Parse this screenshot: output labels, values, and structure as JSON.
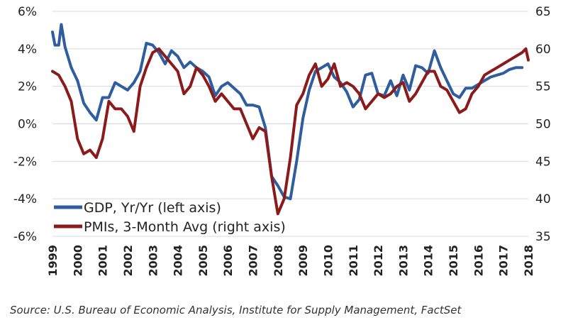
{
  "chart_data": {
    "type": "line",
    "title": "",
    "xlim": [
      1999.0,
      2018.0
    ],
    "x_tick_labels": [
      "1999",
      "2000",
      "2001",
      "2002",
      "2003",
      "2004",
      "2005",
      "2006",
      "2007",
      "2008",
      "2009",
      "2010",
      "2011",
      "2012",
      "2013",
      "2014",
      "2015",
      "2016",
      "2017",
      "2018"
    ],
    "left_axis": {
      "ylim": [
        -6,
        6
      ],
      "tick_labels": [
        "-6%",
        "-4%",
        "-2%",
        "0%",
        "2%",
        "4%",
        "6%"
      ]
    },
    "right_axis": {
      "ylim": [
        35,
        65
      ],
      "tick_labels": [
        "35",
        "40",
        "45",
        "50",
        "55",
        "60",
        "65"
      ]
    },
    "grid": true,
    "legend_position": "lower-left",
    "series": [
      {
        "name": "GDP, Yr/Yr (left axis)",
        "axis": "left",
        "color": "#2f5d9e",
        "x": [
          1999.0,
          1999.1,
          1999.25,
          1999.35,
          1999.5,
          1999.75,
          2000.0,
          2000.25,
          2000.5,
          2000.75,
          2001.0,
          2001.25,
          2001.5,
          2001.75,
          2002.0,
          2002.25,
          2002.5,
          2002.75,
          2003.0,
          2003.25,
          2003.5,
          2003.75,
          2004.0,
          2004.25,
          2004.5,
          2004.75,
          2005.0,
          2005.25,
          2005.5,
          2005.75,
          2006.0,
          2006.25,
          2006.5,
          2006.75,
          2007.0,
          2007.25,
          2007.5,
          2007.75,
          2008.0,
          2008.25,
          2008.5,
          2008.75,
          2009.0,
          2009.25,
          2009.5,
          2009.75,
          2010.0,
          2010.25,
          2010.5,
          2010.75,
          2011.0,
          2011.25,
          2011.5,
          2011.75,
          2012.0,
          2012.25,
          2012.5,
          2012.75,
          2013.0,
          2013.25,
          2013.5,
          2013.75,
          2014.0,
          2014.25,
          2014.5,
          2014.75,
          2015.0,
          2015.25,
          2015.5,
          2015.75,
          2016.0,
          2016.25,
          2016.5,
          2016.75,
          2017.0,
          2017.25,
          2017.5,
          2017.75
        ],
        "values": [
          4.9,
          4.2,
          4.2,
          5.3,
          4.1,
          3.0,
          2.3,
          1.1,
          0.6,
          0.2,
          1.4,
          1.4,
          2.2,
          2.0,
          1.8,
          2.2,
          2.8,
          4.3,
          4.2,
          3.8,
          3.2,
          3.9,
          3.6,
          3.0,
          3.3,
          3.0,
          2.8,
          2.5,
          1.5,
          2.0,
          2.2,
          1.9,
          1.6,
          1.0,
          1.0,
          0.9,
          -0.2,
          -2.8,
          -3.3,
          -3.9,
          -4.0,
          -2.0,
          0.3,
          1.8,
          2.8,
          3.0,
          3.2,
          2.5,
          2.2,
          1.7,
          0.9,
          1.3,
          2.6,
          2.7,
          1.6,
          1.5,
          2.3,
          1.5,
          2.6,
          1.8,
          3.1,
          3.0,
          2.7,
          3.9,
          3.0,
          2.3,
          1.6,
          1.4,
          1.9,
          1.9,
          2.1,
          2.3,
          2.5,
          2.6,
          2.7,
          2.9,
          3.0,
          3.0
        ]
      },
      {
        "name": "PMIs, 3-Month Avg (right axis)",
        "axis": "right",
        "color": "#8b1a1a",
        "x": [
          1999.0,
          1999.25,
          1999.5,
          1999.75,
          2000.0,
          2000.25,
          2000.5,
          2000.75,
          2001.0,
          2001.25,
          2001.5,
          2001.75,
          2002.0,
          2002.25,
          2002.5,
          2002.75,
          2003.0,
          2003.25,
          2003.5,
          2003.75,
          2004.0,
          2004.25,
          2004.5,
          2004.75,
          2005.0,
          2005.25,
          2005.5,
          2005.75,
          2006.0,
          2006.25,
          2006.5,
          2006.75,
          2007.0,
          2007.25,
          2007.5,
          2007.75,
          2008.0,
          2008.25,
          2008.5,
          2008.75,
          2009.0,
          2009.25,
          2009.5,
          2009.75,
          2010.0,
          2010.25,
          2010.5,
          2010.75,
          2011.0,
          2011.25,
          2011.5,
          2011.75,
          2012.0,
          2012.25,
          2012.5,
          2012.75,
          2013.0,
          2013.25,
          2013.5,
          2013.75,
          2014.0,
          2014.25,
          2014.5,
          2014.75,
          2015.0,
          2015.25,
          2015.5,
          2015.75,
          2016.0,
          2016.25,
          2016.5,
          2016.75,
          2017.0,
          2017.25,
          2017.5,
          2017.75,
          2017.9,
          2018.0
        ],
        "values": [
          57,
          56.5,
          55,
          53,
          48,
          46,
          46.5,
          45.5,
          48,
          53,
          52,
          52,
          51,
          49,
          55,
          57.5,
          59.5,
          60,
          59,
          58,
          57,
          54,
          55,
          57.5,
          56.5,
          55,
          53,
          54,
          53,
          52,
          52,
          50,
          48,
          49.5,
          49,
          43,
          38,
          40,
          45.5,
          52.5,
          54,
          56.5,
          58,
          55,
          56,
          58,
          55,
          55.5,
          55,
          54,
          52,
          53,
          54,
          53.5,
          54,
          55,
          55.5,
          53,
          54,
          55.5,
          57,
          57,
          55,
          54.5,
          53,
          51.5,
          52,
          54,
          55,
          56.5,
          57,
          57.5,
          58,
          58.5,
          59,
          59.5,
          60,
          58.5
        ]
      }
    ]
  },
  "source_note": "Source: U.S. Bureau of Economic Analysis, Institute for Supply Management, FactSet"
}
